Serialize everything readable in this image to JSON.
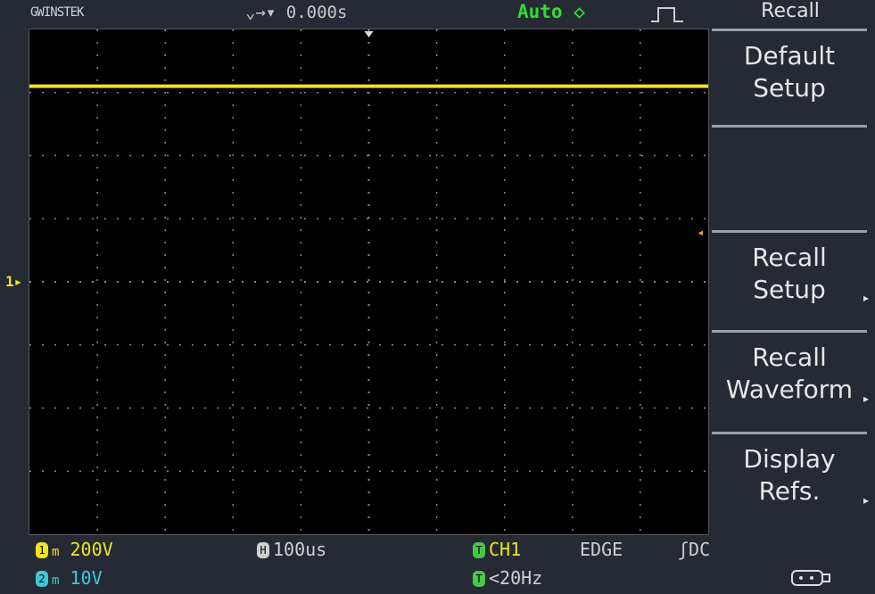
{
  "header": {
    "brand": "GWINSTEK",
    "timebase_position": "0.000s",
    "trigger_mode": "Auto",
    "menu_title": "Recall"
  },
  "menu": {
    "items": [
      {
        "label_lines": [
          "Default",
          "Setup"
        ],
        "has_submenu": false
      },
      {
        "label_lines": [
          "",
          ""
        ],
        "has_submenu": false
      },
      {
        "label_lines": [
          "Recall",
          "Setup"
        ],
        "has_submenu": true
      },
      {
        "label_lines": [
          "Recall",
          "Waveform"
        ],
        "has_submenu": true
      },
      {
        "label_lines": [
          "Display",
          "Refs."
        ],
        "has_submenu": true
      }
    ]
  },
  "status": {
    "ch1": {
      "badge": "1",
      "coupling": "m",
      "scale": "200V"
    },
    "ch2": {
      "badge": "2",
      "coupling": "m",
      "scale": "10V"
    },
    "horizontal": {
      "badge": "H",
      "scale": "100us"
    },
    "trigger": {
      "badge": "T",
      "source": "CH1",
      "type": "EDGE",
      "slope_coupling": "ʃDC",
      "freq": "<20Hz"
    },
    "usb_icon": "usb-icon"
  },
  "display": {
    "grid_divisions_x": 10,
    "grid_divisions_y": 8,
    "ch1_marker": "1",
    "trace_color": "#f0e41c",
    "trace_level_div": 3.1
  }
}
